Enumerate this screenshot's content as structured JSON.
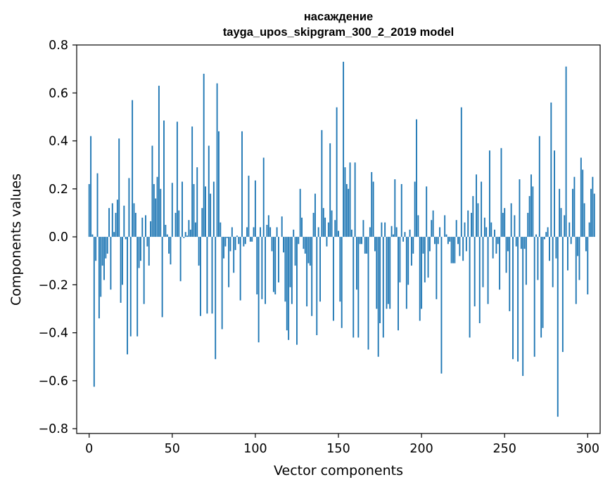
{
  "chart_data": {
    "type": "bar",
    "title": "насаждение",
    "subtitle": "tayga_upos_skipgram_300_2_2019 model",
    "xlabel": "Vector components",
    "ylabel": "Components values",
    "xlim": [
      -7.5,
      307.5
    ],
    "ylim": [
      -0.82,
      0.8
    ],
    "xticks": [
      0,
      50,
      100,
      150,
      200,
      250,
      300
    ],
    "xtick_labels": [
      "0",
      "50",
      "100",
      "150",
      "200",
      "250",
      "300"
    ],
    "yticks": [
      0.8,
      0.6,
      0.4,
      0.2,
      0.0,
      -0.2,
      -0.4,
      -0.6,
      -0.8
    ],
    "ytick_labels": [
      "0.8",
      "0.6",
      "0.4",
      "0.2",
      "0.0",
      "−0.2",
      "−0.4",
      "−0.6",
      "−0.8"
    ],
    "grid": false,
    "bar_color": "#1f77b4",
    "values": [
      0.22,
      0.42,
      0.01,
      -0.625,
      -0.1,
      0.265,
      -0.34,
      -0.25,
      -0.12,
      -0.18,
      -0.09,
      -0.07,
      0.12,
      -0.22,
      0.14,
      0.02,
      0.1,
      0.155,
      0.41,
      -0.275,
      -0.2,
      0.13,
      -0.01,
      -0.49,
      0.245,
      -0.415,
      0.57,
      0.14,
      0.1,
      -0.415,
      -0.13,
      -0.1,
      0.08,
      -0.28,
      0.09,
      -0.04,
      -0.12,
      0.065,
      0.38,
      0.22,
      0.16,
      0.25,
      0.63,
      0.2,
      -0.335,
      0.485,
      0.05,
      0.01,
      -0.07,
      -0.115,
      0.225,
      0.0,
      0.1,
      0.48,
      0.11,
      -0.185,
      0.23,
      -0.005,
      0.02,
      0.005,
      0.07,
      0.03,
      0.46,
      0.22,
      0.06,
      0.29,
      -0.12,
      -0.33,
      0.12,
      0.68,
      0.21,
      -0.32,
      0.38,
      0.18,
      -0.32,
      0.23,
      -0.51,
      0.64,
      0.44,
      0.06,
      -0.385,
      -0.09,
      -0.04,
      -0.005,
      -0.21,
      -0.06,
      0.04,
      -0.15,
      -0.055,
      0.005,
      -0.03,
      -0.265,
      0.44,
      -0.04,
      -0.03,
      0.04,
      0.255,
      -0.02,
      -0.02,
      0.04,
      0.235,
      -0.24,
      -0.44,
      0.04,
      -0.26,
      0.33,
      -0.28,
      0.05,
      0.09,
      0.04,
      -0.06,
      -0.23,
      -0.24,
      0.04,
      -0.19,
      0.0,
      0.085,
      -0.065,
      -0.27,
      -0.39,
      -0.43,
      -0.21,
      -0.28,
      0.03,
      -0.12,
      -0.45,
      -0.03,
      0.2,
      0.08,
      -0.05,
      -0.07,
      -0.29,
      -0.11,
      -0.12,
      -0.33,
      0.1,
      0.18,
      -0.41,
      0.04,
      -0.27,
      0.445,
      0.12,
      0.08,
      -0.04,
      0.06,
      0.39,
      0.11,
      -0.35,
      0.07,
      0.54,
      0.025,
      -0.27,
      -0.38,
      0.73,
      0.29,
      0.22,
      0.2,
      0.31,
      0.03,
      -0.42,
      0.31,
      -0.22,
      -0.42,
      -0.03,
      -0.03,
      0.07,
      -0.07,
      -0.07,
      -0.47,
      0.04,
      0.27,
      0.23,
      -0.06,
      -0.3,
      -0.5,
      -0.36,
      0.06,
      -0.42,
      0.06,
      -0.3,
      -0.28,
      -0.3,
      0.045,
      0.01,
      0.24,
      0.04,
      -0.39,
      -0.19,
      0.22,
      -0.02,
      0.02,
      -0.3,
      -0.2,
      0.03,
      -0.12,
      -0.07,
      0.23,
      0.49,
      0.09,
      -0.35,
      -0.3,
      -0.07,
      -0.19,
      0.21,
      -0.17,
      -0.06,
      0.07,
      0.11,
      -0.03,
      -0.26,
      -0.03,
      0.04,
      -0.57,
      0.0,
      0.09,
      0.01,
      -0.03,
      -0.02,
      -0.11,
      -0.11,
      -0.11,
      0.07,
      -0.03,
      -0.08,
      0.54,
      -0.1,
      0.06,
      -0.06,
      0.11,
      -0.42,
      0.1,
      0.17,
      -0.29,
      0.26,
      0.14,
      -0.36,
      0.23,
      -0.21,
      0.08,
      0.04,
      -0.28,
      0.36,
      0.06,
      -0.09,
      0.03,
      -0.07,
      -0.03,
      -0.22,
      0.37,
      0.1,
      0.12,
      -0.15,
      -0.06,
      -0.31,
      0.14,
      -0.51,
      0.09,
      -0.04,
      -0.52,
      0.24,
      -0.05,
      -0.58,
      -0.05,
      -0.2,
      0.1,
      0.17,
      0.26,
      0.21,
      -0.5,
      0.01,
      -0.18,
      0.42,
      -0.42,
      -0.38,
      -0.01,
      0.02,
      0.04,
      -0.1,
      0.56,
      -0.21,
      0.36,
      -0.09,
      -0.75,
      0.2,
      0.12,
      -0.48,
      0.09,
      0.71,
      -0.14,
      0.06,
      -0.03,
      0.2,
      0.25,
      -0.28,
      -0.08,
      -0.18,
      0.33,
      0.28,
      0.14,
      -0.06,
      -0.24,
      0.06,
      0.2,
      0.25,
      0.18
    ]
  }
}
